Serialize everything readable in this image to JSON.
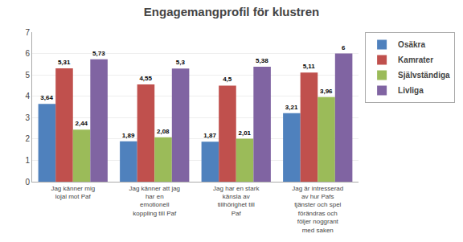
{
  "chart_data": {
    "type": "bar",
    "title": "Engagemangprofil för klustren",
    "categories": [
      "Jag känner mig\nlojal mot Paf",
      "Jag känner att jag\nhar en\nemotionell\nkoppling till Paf",
      "Jag har en stark\nkänsla av\ntillhörighet till\nPaf",
      "Jag är intresserad\nav hur Pafs\ntjänster och spel\nförändras och\nföljer noggrant\nmed saken"
    ],
    "series": [
      {
        "name": "Osäkra",
        "color": "#4F81BD",
        "values": [
          3.64,
          1.89,
          1.87,
          3.21
        ],
        "value_labels": [
          "3,64",
          "1,89",
          "1,87",
          "3,21"
        ]
      },
      {
        "name": "Kamrater",
        "color": "#C0504D",
        "values": [
          5.31,
          4.55,
          4.5,
          5.11
        ],
        "value_labels": [
          "5,31",
          "4,55",
          "4,5",
          "5,11"
        ]
      },
      {
        "name": "Självständiga",
        "color": "#9BBB59",
        "values": [
          2.44,
          2.08,
          2.01,
          3.96
        ],
        "value_labels": [
          "2,44",
          "2,08",
          "2,01",
          "3,96"
        ]
      },
      {
        "name": "Livliga",
        "color": "#8064A2",
        "values": [
          5.73,
          5.3,
          5.38,
          6.0
        ],
        "value_labels": [
          "5,73",
          "5,3",
          "5,38",
          "6"
        ]
      }
    ],
    "ylim": [
      0,
      7
    ],
    "yticks": [
      0,
      1,
      2,
      3,
      4,
      5,
      6,
      7
    ],
    "grid": true,
    "legend": "right",
    "data_labels": true
  }
}
